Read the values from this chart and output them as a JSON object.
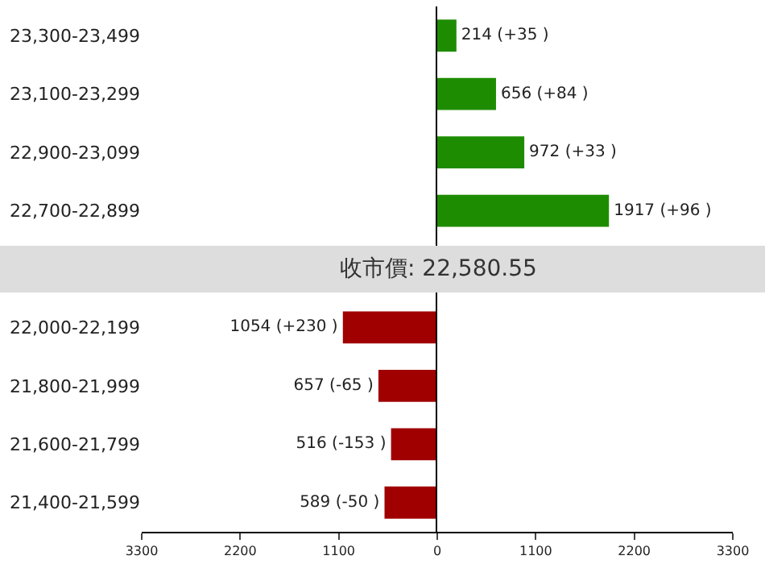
{
  "chart_data": [
    {
      "type": "bar",
      "orientation": "horizontal",
      "categories": [
        "23,300-23,499",
        "23,100-23,299",
        "22,900-23,099",
        "22,700-22,899",
        null,
        "22,000-22,199",
        "21,800-21,999",
        "21,600-21,799",
        "21,400-21,599"
      ],
      "values": [
        null,
        null,
        null,
        null,
        null,
        1054,
        657,
        516,
        589
      ],
      "colors": [
        null,
        null,
        null,
        null,
        null,
        "#a00000",
        "#a00000",
        "#a00000",
        "#a00000"
      ],
      "value_labels": [
        null,
        null,
        null,
        null,
        null,
        "1054 (+230 )",
        "657 (-65 )",
        "516 (-153 )",
        "589 (-50 )"
      ],
      "bands": [
        {
          "axis": "y",
          "from": "22,700-22,899",
          "to": "22,000-22,199",
          "color": "#dddddd",
          "label": "收市價: 22,580.55"
        }
      ],
      "xlim": [
        3300,
        0
      ],
      "xticks": [
        3300,
        2200,
        1100
      ]
    },
    {
      "type": "bar",
      "orientation": "horizontal",
      "categories": [
        null,
        null,
        null,
        null,
        null,
        null,
        null,
        null,
        null
      ],
      "values": [
        214,
        656,
        972,
        1917,
        null,
        null,
        null,
        null,
        null
      ],
      "colors": [
        "#1e8c00",
        "#1e8c00",
        "#1e8c00",
        "#1e8c00",
        null,
        null,
        null,
        null,
        null
      ],
      "value_labels": [
        "214 (+35 )",
        "656 (+84 )",
        "972 (+33 )",
        "1917 (+96 )",
        null,
        null,
        null,
        null,
        null
      ],
      "xlim": [
        0,
        3300
      ],
      "xticks": [
        0,
        1100,
        2200,
        3300
      ],
      "tick_labels": "x"
    }
  ]
}
